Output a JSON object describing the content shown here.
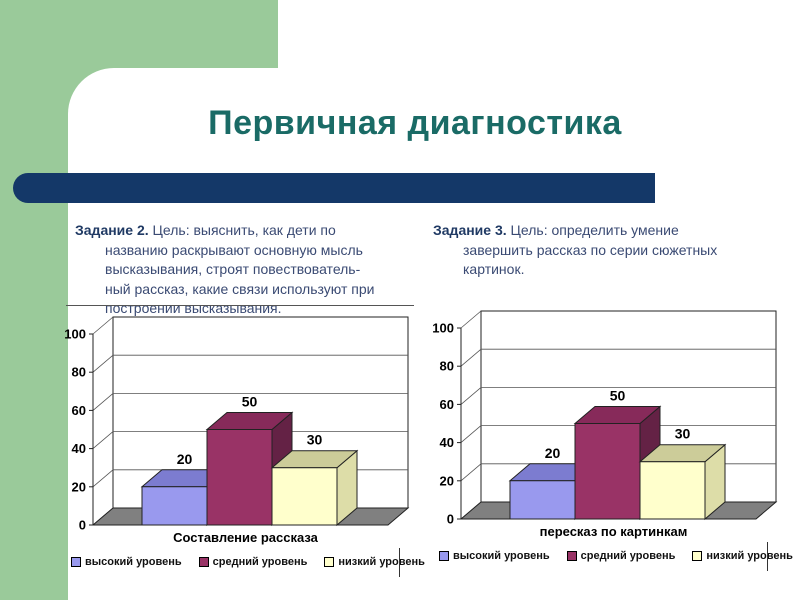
{
  "slide": {
    "title": "Первичная диагностика"
  },
  "task2": {
    "label": "Задание 2.",
    "lines": [
      "Цель: выяснить, как дети по",
      "названию раскрывают основную мысль",
      "высказывания, строят повествователь-",
      "ный рассказ, какие связи используют при",
      "построении высказывания."
    ]
  },
  "task3": {
    "label": "Задание 3.",
    "lines": [
      "Цель: определить умение",
      "завершить рассказ по серии сюжетных",
      "картинок."
    ]
  },
  "colors": {
    "accent_green": "#9ACA9A",
    "accent_navy": "#143868",
    "title_teal": "#1A6B66",
    "floor_gray": "#808080"
  },
  "chart_data": [
    {
      "type": "bar",
      "variant": "3d-column",
      "title": "",
      "categories": [
        "Составление рассказа"
      ],
      "series": [
        {
          "name": "высокий уровень",
          "values": [
            20
          ],
          "color": "#9999EE",
          "color_top": "#7C7CD0",
          "color_side": "#6A6AB8"
        },
        {
          "name": "средний уровень",
          "values": [
            50
          ],
          "color": "#993366",
          "color_top": "#872A5A",
          "color_side": "#642245"
        },
        {
          "name": "низкий уровень",
          "values": [
            30
          ],
          "color": "#FFFFCC",
          "color_top": "#CCCC99",
          "color_side": "#DDDDA8"
        }
      ],
      "data_labels": [
        20,
        50,
        30
      ],
      "ylim": [
        0,
        100
      ],
      "yticks": [
        0,
        20,
        40,
        60,
        80,
        100
      ],
      "grid": true,
      "legend_position": "bottom"
    },
    {
      "type": "bar",
      "variant": "3d-column",
      "title": "",
      "categories": [
        "пересказ по картинкам"
      ],
      "series": [
        {
          "name": "высокий уровень",
          "values": [
            20
          ],
          "color": "#9999EE",
          "color_top": "#7C7CD0",
          "color_side": "#6A6AB8"
        },
        {
          "name": "средний уровень",
          "values": [
            50
          ],
          "color": "#993366",
          "color_top": "#872A5A",
          "color_side": "#642245"
        },
        {
          "name": "низкий уровень",
          "values": [
            30
          ],
          "color": "#FFFFCC",
          "color_top": "#CCCC99",
          "color_side": "#DDDDA8"
        }
      ],
      "data_labels": [
        20,
        50,
        30
      ],
      "ylim": [
        0,
        100
      ],
      "yticks": [
        0,
        20,
        40,
        60,
        80,
        100
      ],
      "grid": true,
      "legend_position": "bottom"
    }
  ]
}
